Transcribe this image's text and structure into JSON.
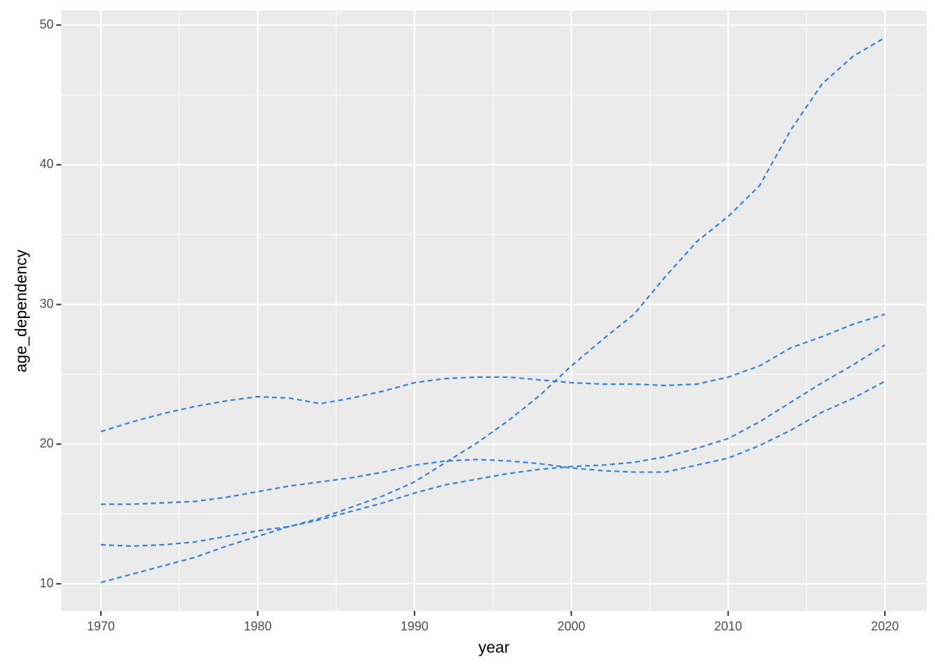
{
  "chart_data": {
    "type": "line",
    "x_label": "year",
    "y_label": "age_dependency",
    "x": [
      1970,
      1972,
      1974,
      1976,
      1978,
      1980,
      1982,
      1984,
      1986,
      1988,
      1990,
      1992,
      1994,
      1996,
      1998,
      2000,
      2002,
      2004,
      2006,
      2008,
      2010,
      2012,
      2014,
      2016,
      2018,
      2020
    ],
    "series": [
      {
        "color": "#2f7ff0",
        "values": [
          10.1,
          10.7,
          11.3,
          11.9,
          12.7,
          13.4,
          14.1,
          14.7,
          15.5,
          16.3,
          17.3,
          18.7,
          20.1,
          21.7,
          23.5,
          25.6,
          27.5,
          29.3,
          32.0,
          34.5,
          36.3,
          38.5,
          42.5,
          45.8,
          47.8,
          49.1
        ]
      },
      {
        "color": "#2f7ff0",
        "values": [
          20.9,
          21.6,
          22.2,
          22.7,
          23.1,
          23.4,
          23.3,
          22.9,
          23.3,
          23.8,
          24.4,
          24.7,
          24.8,
          24.8,
          24.6,
          24.4,
          24.3,
          24.3,
          24.2,
          24.3,
          24.8,
          25.6,
          26.9,
          27.7,
          28.6,
          29.3
        ]
      },
      {
        "color": "#2f7ff0",
        "values": [
          15.7,
          15.7,
          15.8,
          15.9,
          16.2,
          16.6,
          17.0,
          17.3,
          17.6,
          18.0,
          18.5,
          18.8,
          18.9,
          18.8,
          18.6,
          18.3,
          18.1,
          18.0,
          18.0,
          18.5,
          19.0,
          19.9,
          21.0,
          22.3,
          23.3,
          24.5
        ]
      },
      {
        "color": "#2f7ff0",
        "values": [
          12.8,
          12.7,
          12.8,
          13.0,
          13.4,
          13.8,
          14.1,
          14.6,
          15.2,
          15.8,
          16.5,
          17.1,
          17.5,
          17.9,
          18.2,
          18.4,
          18.5,
          18.7,
          19.1,
          19.7,
          20.4,
          21.6,
          23.0,
          24.4,
          25.7,
          27.1
        ]
      }
    ],
    "xlim": [
      1967.47,
      2022.66
    ],
    "xticks": [
      1970,
      1980,
      1990,
      2000,
      2010,
      2020
    ],
    "ylim": [
      8.06,
      51.05
    ],
    "yticks": [
      10,
      20,
      30,
      40,
      50
    ],
    "grid": true,
    "dashed": true,
    "panel_color": "#ebebeb"
  }
}
